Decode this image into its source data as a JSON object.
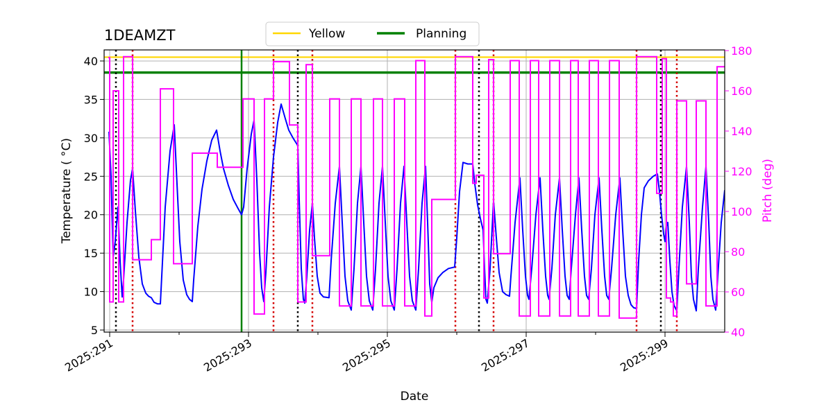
{
  "chart_data": {
    "type": "line",
    "title": "1DEAMZT",
    "xlabel": "Date",
    "ylabel": "Temperature ( °C)",
    "y2label": "Pitch (deg)",
    "xlim": [
      290.92,
      299.86
    ],
    "ylim": [
      4.73,
      41.44
    ],
    "y2lim": [
      40,
      180.34
    ],
    "grid": true,
    "legend_position": "top-center",
    "x_major_ticks": [
      291,
      293,
      295,
      297,
      299
    ],
    "x_tick_labels": [
      "2025:291",
      "2025:293",
      "2025:295",
      "2025:297",
      "2025:299"
    ],
    "x_minor_ticks": [
      292,
      294,
      296,
      298
    ],
    "y_ticks": [
      5,
      10,
      15,
      20,
      25,
      30,
      35,
      40
    ],
    "y_tick_labels": [
      "5",
      "10",
      "15",
      "20",
      "25",
      "30",
      "35",
      "40"
    ],
    "y2_ticks": [
      40,
      60,
      80,
      100,
      120,
      140,
      160,
      180
    ],
    "y2_tick_labels": [
      "40",
      "60",
      "80",
      "100",
      "120",
      "140",
      "160",
      "180"
    ],
    "reference_lines": [
      {
        "name": "Yellow",
        "axis": "y",
        "value": 40.5,
        "color": "#ffd700",
        "style": "solid"
      },
      {
        "name": "Planning",
        "axis": "y",
        "value": 38.5,
        "color": "#008000",
        "style": "solid"
      },
      {
        "name": "planning-marker",
        "axis": "x",
        "value": 292.9,
        "color": "#008000",
        "style": "solid"
      }
    ],
    "black_dotted_x": [
      291.09,
      293.71,
      296.32,
      298.94
    ],
    "red_dotted_x": [
      291.33,
      293.36,
      293.92,
      295.98,
      296.53,
      298.59,
      299.17
    ],
    "series": [
      {
        "name": "temperature",
        "axis": "y",
        "color": "#0000ff",
        "points": [
          [
            290.99,
            30.8
          ],
          [
            291.02,
            25
          ],
          [
            291.05,
            14.5
          ],
          [
            291.08,
            16.5
          ],
          [
            291.12,
            21
          ],
          [
            291.15,
            14
          ],
          [
            291.18,
            9.3
          ],
          [
            291.2,
            11.5
          ],
          [
            291.25,
            19
          ],
          [
            291.3,
            24.5
          ],
          [
            291.33,
            26
          ],
          [
            291.37,
            20.5
          ],
          [
            291.42,
            14.5
          ],
          [
            291.47,
            11
          ],
          [
            291.52,
            9.8
          ],
          [
            291.56,
            9.4
          ],
          [
            291.6,
            9.2
          ],
          [
            291.64,
            8.6
          ],
          [
            291.69,
            8.4
          ],
          [
            291.73,
            8.4
          ],
          [
            291.75,
            12
          ],
          [
            291.8,
            21
          ],
          [
            291.87,
            28.3
          ],
          [
            291.93,
            31.7
          ],
          [
            291.97,
            24
          ],
          [
            292.01,
            16.5
          ],
          [
            292.06,
            11.5
          ],
          [
            292.11,
            9.6
          ],
          [
            292.15,
            9
          ],
          [
            292.19,
            8.7
          ],
          [
            292.21,
            11.5
          ],
          [
            292.27,
            18.5
          ],
          [
            292.33,
            23.3
          ],
          [
            292.4,
            27
          ],
          [
            292.47,
            29.7
          ],
          [
            292.54,
            31
          ],
          [
            292.59,
            28.3
          ],
          [
            292.64,
            26
          ],
          [
            292.71,
            23.8
          ],
          [
            292.78,
            22
          ],
          [
            292.85,
            20.8
          ],
          [
            292.9,
            20
          ],
          [
            292.93,
            21
          ],
          [
            292.98,
            26
          ],
          [
            293.04,
            30.5
          ],
          [
            293.08,
            32.3
          ],
          [
            293.12,
            24.5
          ],
          [
            293.16,
            15
          ],
          [
            293.19,
            10.5
          ],
          [
            293.22,
            8.7
          ],
          [
            293.25,
            12.5
          ],
          [
            293.3,
            21
          ],
          [
            293.36,
            27.5
          ],
          [
            293.42,
            32
          ],
          [
            293.47,
            34.4
          ],
          [
            293.53,
            32.5
          ],
          [
            293.58,
            31
          ],
          [
            293.64,
            30
          ],
          [
            293.71,
            29
          ],
          [
            293.73,
            22
          ],
          [
            293.76,
            13
          ],
          [
            293.79,
            9
          ],
          [
            293.81,
            8.5
          ],
          [
            293.84,
            12
          ],
          [
            293.88,
            18
          ],
          [
            293.92,
            21.5
          ],
          [
            293.95,
            17
          ],
          [
            293.99,
            12
          ],
          [
            294.03,
            9.8
          ],
          [
            294.08,
            9.3
          ],
          [
            294.16,
            9.2
          ],
          [
            294.19,
            14
          ],
          [
            294.25,
            21.5
          ],
          [
            294.31,
            26.3
          ],
          [
            294.35,
            19
          ],
          [
            294.39,
            12
          ],
          [
            294.43,
            8.8
          ],
          [
            294.48,
            7.6
          ],
          [
            294.52,
            13
          ],
          [
            294.57,
            21.5
          ],
          [
            294.62,
            26.3
          ],
          [
            294.66,
            19
          ],
          [
            294.7,
            12
          ],
          [
            294.74,
            8.8
          ],
          [
            294.79,
            7.6
          ],
          [
            294.83,
            13
          ],
          [
            294.88,
            21.5
          ],
          [
            294.93,
            26.3
          ],
          [
            294.97,
            19
          ],
          [
            295.01,
            12
          ],
          [
            295.05,
            8.8
          ],
          [
            295.1,
            7.6
          ],
          [
            295.14,
            13
          ],
          [
            295.19,
            21.5
          ],
          [
            295.24,
            26.3
          ],
          [
            295.28,
            19
          ],
          [
            295.32,
            12
          ],
          [
            295.36,
            8.8
          ],
          [
            295.41,
            7.6
          ],
          [
            295.45,
            13
          ],
          [
            295.5,
            21.5
          ],
          [
            295.55,
            26.3
          ],
          [
            295.58,
            19
          ],
          [
            295.61,
            11
          ],
          [
            295.64,
            8.6
          ],
          [
            295.67,
            10.5
          ],
          [
            295.73,
            11.8
          ],
          [
            295.8,
            12.5
          ],
          [
            295.88,
            13
          ],
          [
            295.97,
            13.2
          ],
          [
            296.0,
            17
          ],
          [
            296.04,
            23
          ],
          [
            296.09,
            26.8
          ],
          [
            296.16,
            26.6
          ],
          [
            296.23,
            26.6
          ],
          [
            296.26,
            24
          ],
          [
            296.3,
            21.3
          ],
          [
            296.34,
            19.5
          ],
          [
            296.38,
            18
          ],
          [
            296.4,
            13
          ],
          [
            296.42,
            9
          ],
          [
            296.44,
            8.5
          ],
          [
            296.48,
            13
          ],
          [
            296.53,
            21.8
          ],
          [
            296.57,
            17
          ],
          [
            296.61,
            12.5
          ],
          [
            296.66,
            10
          ],
          [
            296.71,
            9.6
          ],
          [
            296.76,
            9.4
          ],
          [
            296.78,
            12
          ],
          [
            296.84,
            19
          ],
          [
            296.91,
            24.8
          ],
          [
            296.95,
            18
          ],
          [
            296.99,
            12
          ],
          [
            297.02,
            9.5
          ],
          [
            297.04,
            9
          ],
          [
            297.08,
            13
          ],
          [
            297.14,
            20
          ],
          [
            297.2,
            24.8
          ],
          [
            297.24,
            18
          ],
          [
            297.28,
            12
          ],
          [
            297.31,
            9.5
          ],
          [
            297.33,
            9
          ],
          [
            297.37,
            13
          ],
          [
            297.42,
            20
          ],
          [
            297.48,
            24.8
          ],
          [
            297.52,
            18
          ],
          [
            297.56,
            12
          ],
          [
            297.59,
            9.5
          ],
          [
            297.62,
            9
          ],
          [
            297.65,
            13
          ],
          [
            297.71,
            20
          ],
          [
            297.76,
            24.8
          ],
          [
            297.8,
            18
          ],
          [
            297.84,
            12
          ],
          [
            297.87,
            9.5
          ],
          [
            297.9,
            9
          ],
          [
            297.94,
            13
          ],
          [
            297.99,
            20
          ],
          [
            298.05,
            24.8
          ],
          [
            298.09,
            18
          ],
          [
            298.13,
            12
          ],
          [
            298.16,
            9.5
          ],
          [
            298.19,
            9
          ],
          [
            298.23,
            13
          ],
          [
            298.29,
            20
          ],
          [
            298.35,
            24.8
          ],
          [
            298.39,
            18
          ],
          [
            298.43,
            12
          ],
          [
            298.47,
            9.5
          ],
          [
            298.51,
            8.3
          ],
          [
            298.55,
            7.9
          ],
          [
            298.59,
            7.8
          ],
          [
            298.62,
            14
          ],
          [
            298.66,
            20
          ],
          [
            298.7,
            23.5
          ],
          [
            298.76,
            24.4
          ],
          [
            298.83,
            25
          ],
          [
            298.89,
            25.3
          ],
          [
            298.92,
            23
          ],
          [
            298.95,
            20
          ],
          [
            298.98,
            17.5
          ],
          [
            299.0,
            16.5
          ],
          [
            299.02,
            18.5
          ],
          [
            299.04,
            19
          ],
          [
            299.07,
            14
          ],
          [
            299.1,
            10
          ],
          [
            299.13,
            8.2
          ],
          [
            299.17,
            7.5
          ],
          [
            299.2,
            13
          ],
          [
            299.25,
            21
          ],
          [
            299.31,
            26.3
          ],
          [
            299.35,
            19
          ],
          [
            299.38,
            12
          ],
          [
            299.41,
            9
          ],
          [
            299.45,
            7.5
          ],
          [
            299.48,
            13
          ],
          [
            299.54,
            21
          ],
          [
            299.59,
            26.3
          ],
          [
            299.63,
            19
          ],
          [
            299.66,
            12
          ],
          [
            299.69,
            9
          ],
          [
            299.73,
            7.6
          ],
          [
            299.76,
            12
          ],
          [
            299.81,
            19
          ],
          [
            299.86,
            23.2
          ]
        ]
      },
      {
        "name": "pitch",
        "axis": "y2",
        "color": "#ff00ff",
        "steps": [
          [
            290.98,
            291.0,
            176.5
          ],
          [
            291.0,
            291.05,
            55
          ],
          [
            291.05,
            291.13,
            160
          ],
          [
            291.13,
            291.2,
            55
          ],
          [
            291.2,
            291.33,
            177
          ],
          [
            291.33,
            291.6,
            76
          ],
          [
            291.6,
            291.73,
            86
          ],
          [
            291.73,
            291.92,
            161
          ],
          [
            291.92,
            292.19,
            74
          ],
          [
            292.19,
            292.55,
            129
          ],
          [
            292.55,
            292.92,
            122
          ],
          [
            292.92,
            293.08,
            156
          ],
          [
            293.08,
            293.23,
            49
          ],
          [
            293.23,
            293.36,
            156
          ],
          [
            293.36,
            293.59,
            174.5
          ],
          [
            293.59,
            293.71,
            143
          ],
          [
            293.71,
            293.83,
            55
          ],
          [
            293.83,
            293.92,
            173
          ],
          [
            293.92,
            294.17,
            78
          ],
          [
            294.17,
            294.31,
            156
          ],
          [
            294.31,
            294.48,
            53
          ],
          [
            294.48,
            294.62,
            156
          ],
          [
            294.62,
            294.8,
            53
          ],
          [
            294.8,
            294.93,
            156
          ],
          [
            294.93,
            295.1,
            53
          ],
          [
            295.1,
            295.25,
            156
          ],
          [
            295.25,
            295.41,
            53
          ],
          [
            295.41,
            295.54,
            175
          ],
          [
            295.54,
            295.64,
            48
          ],
          [
            295.64,
            295.98,
            106
          ],
          [
            295.98,
            296.23,
            177
          ],
          [
            296.23,
            296.28,
            114
          ],
          [
            296.28,
            296.39,
            118
          ],
          [
            296.39,
            296.46,
            57
          ],
          [
            296.46,
            296.53,
            175.5
          ],
          [
            296.53,
            296.77,
            79
          ],
          [
            296.77,
            296.9,
            175
          ],
          [
            296.9,
            297.06,
            48
          ],
          [
            297.06,
            297.18,
            175
          ],
          [
            297.18,
            297.34,
            48
          ],
          [
            297.34,
            297.48,
            175
          ],
          [
            297.48,
            297.64,
            48
          ],
          [
            297.64,
            297.75,
            175
          ],
          [
            297.75,
            297.91,
            48
          ],
          [
            297.91,
            298.04,
            175
          ],
          [
            298.04,
            298.2,
            48
          ],
          [
            298.2,
            298.34,
            175
          ],
          [
            298.34,
            298.59,
            47
          ],
          [
            298.59,
            298.88,
            177
          ],
          [
            298.88,
            298.96,
            109
          ],
          [
            298.96,
            299.02,
            176
          ],
          [
            299.02,
            299.08,
            57
          ],
          [
            299.08,
            299.12,
            55
          ],
          [
            299.12,
            299.17,
            48
          ],
          [
            299.17,
            299.31,
            155
          ],
          [
            299.31,
            299.45,
            64
          ],
          [
            299.45,
            299.59,
            155
          ],
          [
            299.59,
            299.75,
            53
          ],
          [
            299.75,
            299.86,
            172
          ]
        ]
      }
    ]
  },
  "legend": {
    "items": [
      {
        "label": "Yellow",
        "color": "#ffd700"
      },
      {
        "label": "Planning",
        "color": "#008000"
      }
    ]
  },
  "colors": {
    "temperature": "#0000ff",
    "pitch": "#ff00ff",
    "black_ref": "#000000",
    "red_ref": "#d40000",
    "grid": "#b0b0b0"
  }
}
